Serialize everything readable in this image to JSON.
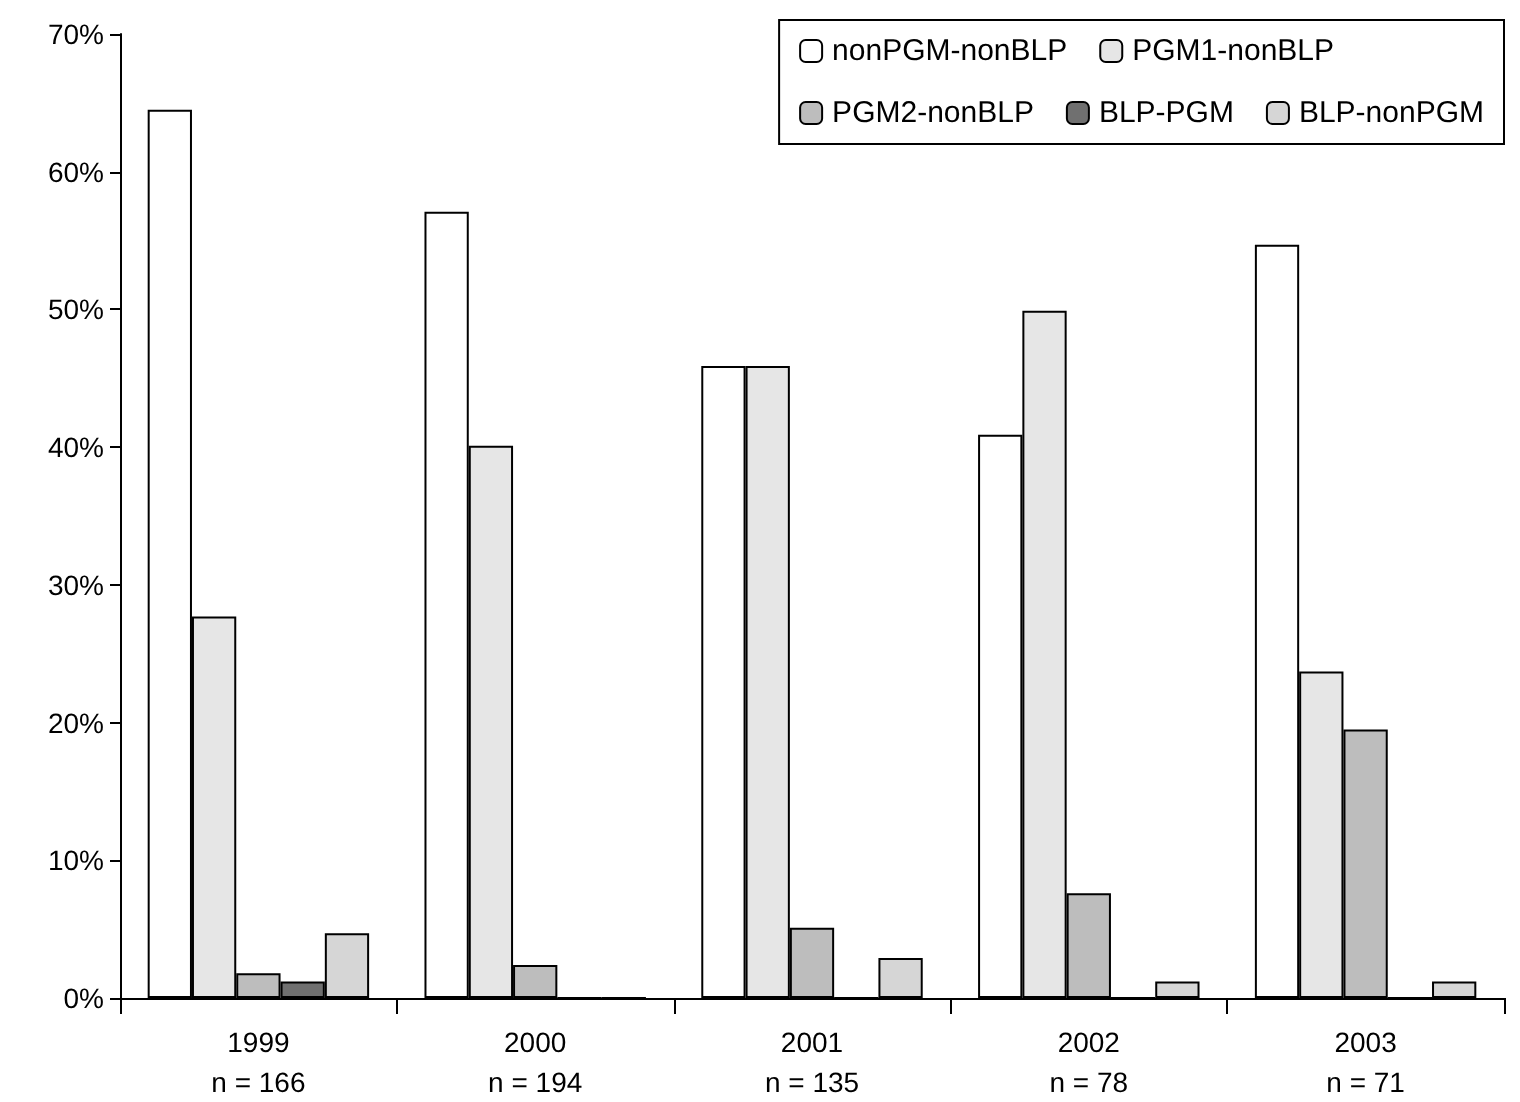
{
  "chart_data": {
    "type": "bar",
    "categories": [
      "1999\nn = 166",
      "2000\nn = 194",
      "2001\nn = 135",
      "2002\nn = 78",
      "2003\nn = 71"
    ],
    "series": [
      {
        "name": "nonPGM-nonBLP",
        "color": "#ffffff",
        "values": [
          64.5,
          57.1,
          45.9,
          40.9,
          54.7
        ]
      },
      {
        "name": "PGM1-nonBLP",
        "color": "#e6e6e6",
        "values": [
          27.7,
          40.1,
          45.9,
          49.9,
          23.7
        ]
      },
      {
        "name": "PGM2-nonBLP",
        "color": "#bdbdbd",
        "values": [
          1.8,
          2.4,
          5.1,
          7.6,
          19.5
        ]
      },
      {
        "name": "BLP-PGM",
        "color": "#707070",
        "values": [
          1.2,
          0,
          0,
          0,
          0
        ]
      },
      {
        "name": "BLP-nonPGM",
        "color": "#d6d6d6",
        "values": [
          4.7,
          0,
          2.9,
          1.2,
          1.2
        ]
      }
    ],
    "ylim": [
      0,
      70
    ],
    "yticks": [
      {
        "value": 0,
        "label": "0%"
      },
      {
        "value": 10,
        "label": "10%"
      },
      {
        "value": 20,
        "label": "20%"
      },
      {
        "value": 30,
        "label": "30%"
      },
      {
        "value": 40,
        "label": "40%"
      },
      {
        "value": 50,
        "label": "50%"
      },
      {
        "value": 60,
        "label": "60%"
      },
      {
        "value": 70,
        "label": "70%"
      }
    ],
    "grid": false,
    "legend": "top right"
  }
}
